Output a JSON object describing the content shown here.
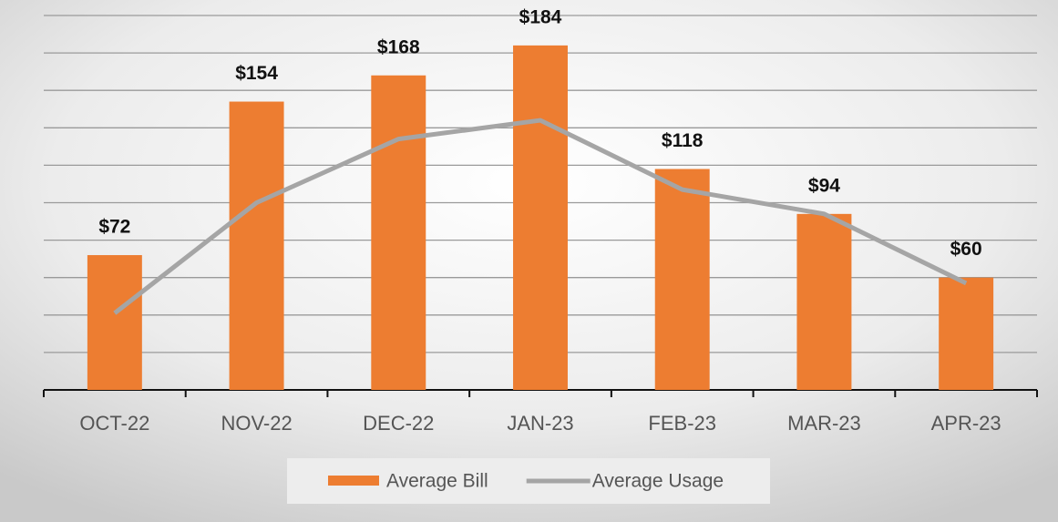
{
  "chart_data": {
    "type": "bar",
    "categories": [
      "OCT-22",
      "NOV-22",
      "DEC-22",
      "JAN-23",
      "FEB-23",
      "MAR-23",
      "APR-23"
    ],
    "series": [
      {
        "name": "Average Bill",
        "type": "bar",
        "color": "#ED7D31",
        "values": [
          72,
          154,
          168,
          184,
          118,
          94,
          60
        ],
        "value_labels": [
          "$72",
          "$154",
          "$168",
          "$184",
          "$118",
          "$94",
          "$60"
        ]
      },
      {
        "name": "Average Usage",
        "type": "line",
        "color": "#A5A5A5",
        "values": [
          41,
          100,
          134,
          144,
          107,
          94,
          57
        ]
      }
    ],
    "ylim": [
      0,
      200
    ],
    "yticks": [
      0,
      20,
      40,
      60,
      80,
      100,
      120,
      140,
      160,
      180,
      200
    ],
    "grid": true,
    "legend": "bottom"
  }
}
